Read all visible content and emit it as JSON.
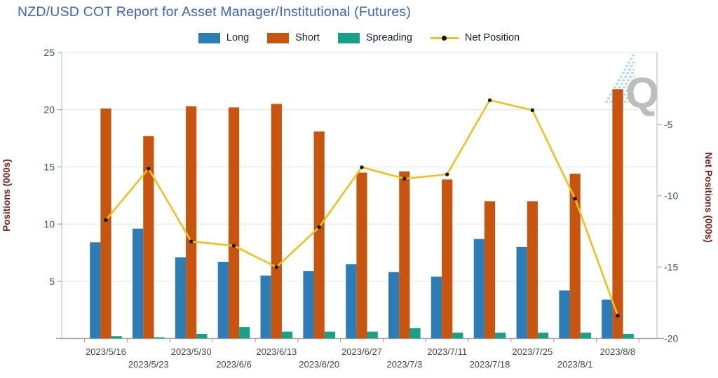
{
  "title": "NZD/USD COT Report for Asset Manager/Institutional (Futures)",
  "watermark": {
    "letter": "Q"
  },
  "colors": {
    "long": "#2e7cb5",
    "short": "#c7540f",
    "spreading": "#18a089",
    "net_line": "#f2c01d",
    "net_dot": "#161616",
    "title": "#3b63c6",
    "legend_text": "#1a2030",
    "axis_title": "#7a1f17",
    "tick_label": "#33566f",
    "date_label": "#454545",
    "grid": "#e3e3e3",
    "axis_line": "#c2c2c2",
    "baseline": "#a8a8a8",
    "watermark_q": "#bdbdbd",
    "watermark_dash": "#a9dcf1"
  },
  "chart_data": {
    "type": "bar+line combo",
    "title": "NZD/USD COT Report for Asset Manager/Institutional (Futures)",
    "categories": [
      "2023/5/16",
      "2023/5/23",
      "2023/5/30",
      "2023/6/6",
      "2023/6/13",
      "2023/6/20",
      "2023/6/27",
      "2023/7/3",
      "2023/7/11",
      "2023/7/18",
      "2023/7/25",
      "2023/8/1",
      "2023/8/8"
    ],
    "series": [
      {
        "name": "Long",
        "type": "bar",
        "axis": "left",
        "color_key": "long",
        "values": [
          8.4,
          9.6,
          7.1,
          6.7,
          5.5,
          5.9,
          6.5,
          5.8,
          5.4,
          8.7,
          8.0,
          4.2,
          3.4
        ]
      },
      {
        "name": "Short",
        "type": "bar",
        "axis": "left",
        "color_key": "short",
        "values": [
          20.1,
          17.7,
          20.3,
          20.2,
          20.5,
          18.1,
          14.5,
          14.6,
          13.9,
          12.0,
          12.0,
          14.4,
          21.8
        ]
      },
      {
        "name": "Spreading",
        "type": "bar",
        "axis": "left",
        "color_key": "spreading",
        "values": [
          0.2,
          0.1,
          0.4,
          1.0,
          0.6,
          0.6,
          0.6,
          0.9,
          0.5,
          0.5,
          0.5,
          0.5,
          0.4
        ]
      },
      {
        "name": "Net Position",
        "type": "line",
        "axis": "right",
        "color_key": "net_line",
        "values": [
          -11.7,
          -8.1,
          -13.2,
          -13.5,
          -15.0,
          -12.2,
          -8.0,
          -8.8,
          -8.5,
          -3.3,
          -4.0,
          -10.2,
          -18.4
        ]
      }
    ],
    "left_axis": {
      "label": "Positions (000s)",
      "min": 0,
      "max": 25,
      "ticks": [
        5,
        10,
        15,
        20,
        25
      ]
    },
    "right_axis": {
      "label": "Net Positions (000s)",
      "min": -20,
      "max": 0,
      "ticks": [
        -20,
        -15,
        -10,
        -5
      ]
    },
    "grid": true,
    "legend_position": "top",
    "x_labels_staggered": true
  }
}
